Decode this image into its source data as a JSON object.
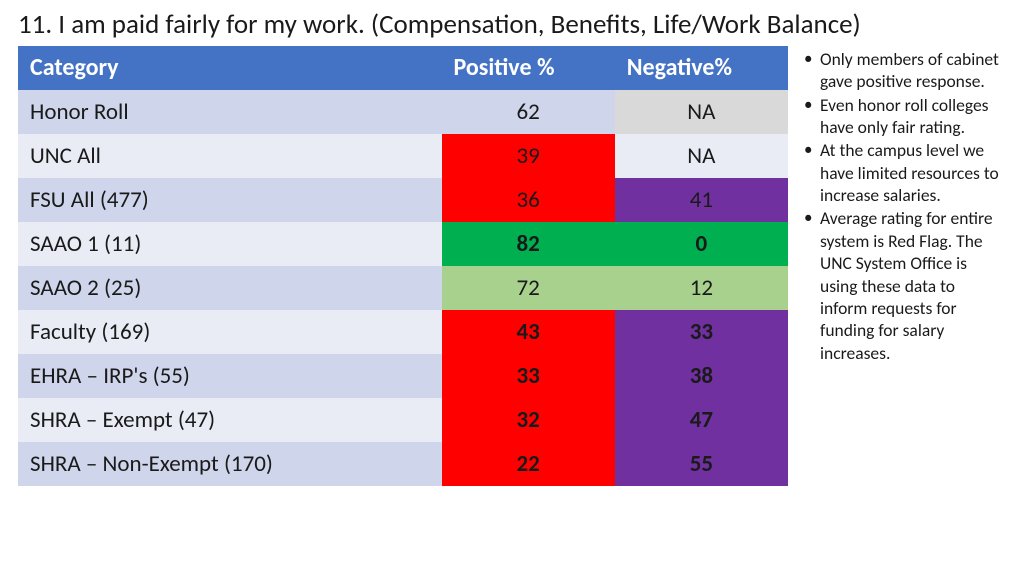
{
  "title": "11. I am paid fairly for my work. (Compensation, Benefits, Life/Work Balance)",
  "table": {
    "header_bg": "#4472c4",
    "header_fg": "#ffffff",
    "columns": [
      "Category",
      "Positive %",
      "Negative%"
    ],
    "row_alt_bg": [
      "#cfd5ea",
      "#e9ecf5"
    ],
    "cell_colors": {
      "gray": "#d9d9d9",
      "red": "#ff0000",
      "purple": "#7030a0",
      "green_dark": "#00b050",
      "green_light": "#a9d18e"
    },
    "rows": [
      {
        "cat": "Honor Roll",
        "pos": "62",
        "pos_bg": null,
        "pos_bold": false,
        "neg": "NA",
        "neg_bg": "gray",
        "neg_bold": false,
        "neg_fg": "#1a1a1a"
      },
      {
        "cat": "UNC All",
        "pos": "39",
        "pos_bg": "red",
        "pos_bold": false,
        "neg": "NA",
        "neg_bg": null,
        "neg_bold": false,
        "neg_fg": "#1a1a1a"
      },
      {
        "cat": "FSU All (477)",
        "pos": "36",
        "pos_bg": "red",
        "pos_bold": false,
        "neg": "41",
        "neg_bg": "purple",
        "neg_bold": false,
        "neg_fg": "#1a1a1a"
      },
      {
        "cat": "SAAO 1 (11)",
        "pos": "82",
        "pos_bg": "green_dark",
        "pos_bold": true,
        "neg": "0",
        "neg_bg": "green_dark",
        "neg_bold": true,
        "neg_fg": "#1a1a1a"
      },
      {
        "cat": "SAAO 2 (25)",
        "pos": "72",
        "pos_bg": "green_light",
        "pos_bold": false,
        "neg": "12",
        "neg_bg": "green_light",
        "neg_bold": false,
        "neg_fg": "#1a1a1a"
      },
      {
        "cat": "Faculty (169)",
        "pos": "43",
        "pos_bg": "red",
        "pos_bold": true,
        "neg": "33",
        "neg_bg": "purple",
        "neg_bold": true,
        "neg_fg": "#1a1a1a"
      },
      {
        "cat": "EHRA – IRP's (55)",
        "pos": "33",
        "pos_bg": "red",
        "pos_bold": true,
        "neg": "38",
        "neg_bg": "purple",
        "neg_bold": true,
        "neg_fg": "#1a1a1a"
      },
      {
        "cat": "SHRA – Exempt (47)",
        "pos": "32",
        "pos_bg": "red",
        "pos_bold": true,
        "neg": "47",
        "neg_bg": "purple",
        "neg_bold": true,
        "neg_fg": "#1a1a1a"
      },
      {
        "cat": "SHRA – Non-Exempt (170)",
        "pos": "22",
        "pos_bg": "red",
        "pos_bold": true,
        "neg": "55",
        "neg_bg": "purple",
        "neg_bold": true,
        "neg_fg": "#1a1a1a"
      }
    ]
  },
  "notes": [
    "Only members of cabinet gave positive response.",
    "Even honor roll colleges have only fair rating.",
    "At the campus level we have limited resources to increase salaries.",
    "Average rating for entire system is Red Flag.  The UNC System Office is using these data to inform requests for funding for salary increases."
  ]
}
